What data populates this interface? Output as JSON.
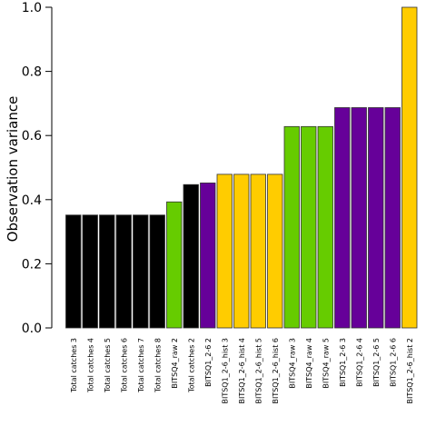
{
  "chart_data": {
    "type": "bar",
    "ylabel": "Observation variance",
    "xlabel": "",
    "ylim": [
      0,
      1
    ],
    "yticks": [
      "0.0",
      "0.2",
      "0.4",
      "0.6",
      "0.8",
      "1.0"
    ],
    "grid": false,
    "categories": [
      "Total catches 3",
      "Total catches 4",
      "Total catches 5",
      "Total catches 6",
      "Total catches 7",
      "Total catches 8",
      "BITSQ4_raw 2",
      "Total catches 2",
      "BITSQ1_2-6 2",
      "BITSQ1_2-6_hist 3",
      "BITSQ1_2-6_hist 4",
      "BITSQ1_2-6_hist 5",
      "BITSQ1_2-6_hist 6",
      "BITSQ4_raw 3",
      "BITSQ4_raw 4",
      "BITSQ4_raw 5",
      "BITSQ1_2-6 3",
      "BITSQ1_2-6 4",
      "BITSQ1_2-6 5",
      "BITSQ1_2-6 6",
      "BITSQ1_2-6_hist 2"
    ],
    "values": [
      0.352,
      0.352,
      0.352,
      0.352,
      0.352,
      0.352,
      0.393,
      0.447,
      0.452,
      0.479,
      0.479,
      0.479,
      0.479,
      0.628,
      0.628,
      0.628,
      0.687,
      0.687,
      0.687,
      0.687,
      1.0
    ],
    "colors": [
      "#000000",
      "#000000",
      "#000000",
      "#000000",
      "#000000",
      "#000000",
      "#66cc00",
      "#000000",
      "#660099",
      "#ffcc00",
      "#ffcc00",
      "#ffcc00",
      "#ffcc00",
      "#66cc00",
      "#66cc00",
      "#66cc00",
      "#660099",
      "#660099",
      "#660099",
      "#660099",
      "#ffcc00"
    ]
  }
}
